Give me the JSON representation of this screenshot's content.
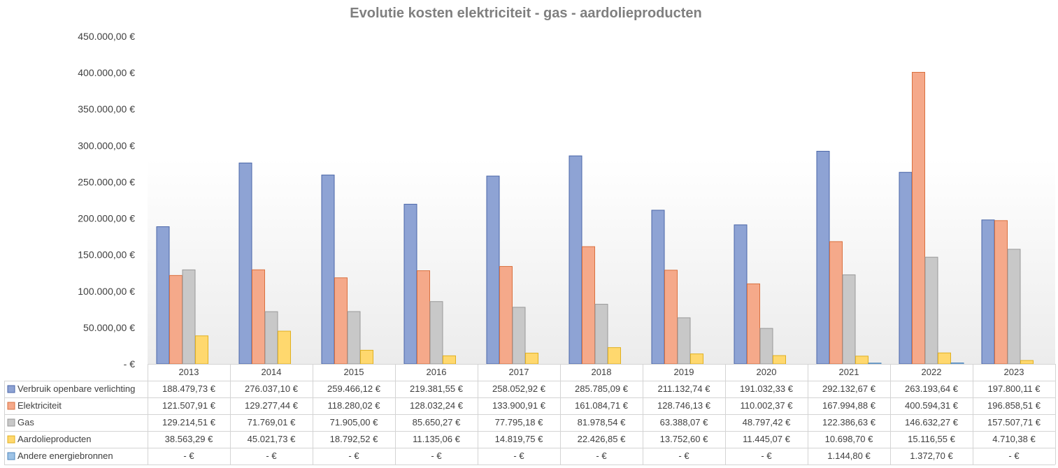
{
  "chart_data": {
    "type": "bar",
    "title": "Evolutie kosten elektriciteit - gas - aardolieproducten",
    "xlabel": "",
    "ylabel": "",
    "ylim": [
      0,
      450000
    ],
    "y_ticks": [
      0,
      50000,
      100000,
      150000,
      200000,
      250000,
      300000,
      350000,
      400000,
      450000
    ],
    "y_tick_labels": [
      "-   €",
      "50.000,00 €",
      "100.000,00 €",
      "150.000,00 €",
      "200.000,00 €",
      "250.000,00 €",
      "300.000,00 €",
      "350.000,00 €",
      "400.000,00 €",
      "450.000,00 €"
    ],
    "grid": false,
    "legend": "data-table",
    "categories": [
      "2013",
      "2014",
      "2015",
      "2016",
      "2017",
      "2018",
      "2019",
      "2020",
      "2021",
      "2022",
      "2023"
    ],
    "series": [
      {
        "name": "Verbruik openbare verlichting",
        "color": "#8ea3d4",
        "edge": "#4a66a8",
        "values": [
          188479.73,
          276037.1,
          259466.12,
          219381.55,
          258052.92,
          285785.09,
          211132.74,
          191032.33,
          292132.67,
          263193.64,
          197800.11
        ],
        "labels": [
          "188.479,73 €",
          "276.037,10 €",
          "259.466,12 €",
          "219.381,55 €",
          "258.052,92 €",
          "285.785,09 €",
          "211.132,74 €",
          "191.032,33 €",
          "292.132,67 €",
          "263.193,64 €",
          "197.800,11 €"
        ]
      },
      {
        "name": "Elektriciteit",
        "color": "#f5a98a",
        "edge": "#d9703f",
        "values": [
          121507.91,
          129277.44,
          118280.02,
          128032.24,
          133900.91,
          161084.71,
          128746.13,
          110002.37,
          167994.88,
          400594.31,
          196858.51
        ],
        "labels": [
          "121.507,91 €",
          "129.277,44 €",
          "118.280,02 €",
          "128.032,24 €",
          "133.900,91 €",
          "161.084,71 €",
          "128.746,13 €",
          "110.002,37 €",
          "167.994,88 €",
          "400.594,31 €",
          "196.858,51 €"
        ]
      },
      {
        "name": "Gas",
        "color": "#c8c8c8",
        "edge": "#999999",
        "values": [
          129214.51,
          71769.01,
          71905.0,
          85650.27,
          77795.18,
          81978.54,
          63388.07,
          48797.42,
          122386.63,
          146632.27,
          157507.71
        ],
        "labels": [
          "129.214,51 €",
          "71.769,01 €",
          "71.905,00 €",
          "85.650,27 €",
          "77.795,18 €",
          "81.978,54 €",
          "63.388,07 €",
          "48.797,42 €",
          "122.386,63 €",
          "146.632,27 €",
          "157.507,71 €"
        ]
      },
      {
        "name": "Aardolieproducten",
        "color": "#ffd86e",
        "edge": "#e0b020",
        "values": [
          38563.29,
          45021.73,
          18792.52,
          11135.06,
          14819.75,
          22426.85,
          13752.6,
          11445.07,
          10698.7,
          15116.55,
          4710.38
        ],
        "labels": [
          "38.563,29 €",
          "45.021,73 €",
          "18.792,52 €",
          "11.135,06 €",
          "14.819,75 €",
          "22.426,85 €",
          "13.752,60 €",
          "11.445,07 €",
          "10.698,70 €",
          "15.116,55 €",
          "4.710,38 €"
        ]
      },
      {
        "name": "Andere energiebronnen",
        "color": "#9dc3e6",
        "edge": "#4f87bd",
        "values": [
          0,
          0,
          0,
          0,
          0,
          0,
          0,
          0,
          1144.8,
          1372.7,
          0
        ],
        "labels": [
          "-   €",
          "-   €",
          "-   €",
          "-   €",
          "-   €",
          "-   €",
          "-   €",
          "-   €",
          "1.144,80 €",
          "1.372,70 €",
          "-   €"
        ]
      }
    ]
  }
}
